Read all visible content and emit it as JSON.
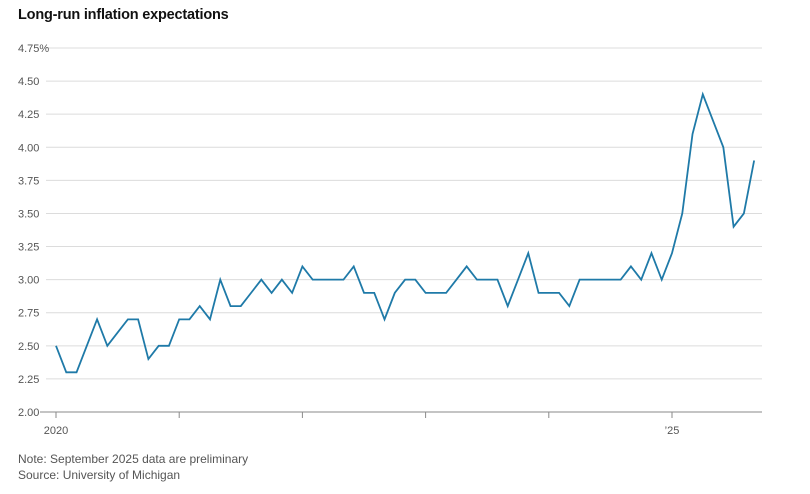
{
  "chart_data": {
    "type": "line",
    "title": "Long-run inflation expectations",
    "xlabel": "",
    "ylabel": "",
    "ylim": [
      2.0,
      4.75
    ],
    "y_ticks": [
      "4.75%",
      "4.50",
      "4.25",
      "4.00",
      "3.75",
      "3.50",
      "3.25",
      "3.00",
      "2.75",
      "2.50",
      "2.25",
      "2.00"
    ],
    "x_ticks": [
      {
        "year": 2020,
        "label": "2020"
      },
      {
        "year": 2021,
        "label": ""
      },
      {
        "year": 2022,
        "label": ""
      },
      {
        "year": 2023,
        "label": ""
      },
      {
        "year": 2024,
        "label": ""
      },
      {
        "year": 2025,
        "label": "’25"
      }
    ],
    "grid": true,
    "legend": "none",
    "color": "#1f7aa8",
    "series": [
      {
        "x": [
          "2020-01",
          "2020-02",
          "2020-03",
          "2020-04",
          "2020-05",
          "2020-06",
          "2020-07",
          "2020-08",
          "2020-09",
          "2020-10",
          "2020-11",
          "2020-12",
          "2021-01",
          "2021-02",
          "2021-03",
          "2021-04",
          "2021-05",
          "2021-06",
          "2021-07",
          "2021-08",
          "2021-09",
          "2021-10",
          "2021-11",
          "2021-12",
          "2022-01",
          "2022-02",
          "2022-03",
          "2022-04",
          "2022-05",
          "2022-06",
          "2022-07",
          "2022-08",
          "2022-09",
          "2022-10",
          "2022-11",
          "2022-12",
          "2023-01",
          "2023-02",
          "2023-03",
          "2023-04",
          "2023-05",
          "2023-06",
          "2023-07",
          "2023-08",
          "2023-09",
          "2023-10",
          "2023-11",
          "2023-12",
          "2024-01",
          "2024-02",
          "2024-03",
          "2024-04",
          "2024-05",
          "2024-06",
          "2024-07",
          "2024-08",
          "2024-09",
          "2024-10",
          "2024-11",
          "2024-12",
          "2025-01",
          "2025-02",
          "2025-03",
          "2025-04",
          "2025-05",
          "2025-06",
          "2025-07",
          "2025-08",
          "2025-09"
        ],
        "values": [
          2.5,
          2.3,
          2.3,
          2.5,
          2.7,
          2.5,
          2.6,
          2.7,
          2.7,
          2.4,
          2.5,
          2.5,
          2.7,
          2.7,
          2.8,
          2.7,
          3.0,
          2.8,
          2.8,
          2.9,
          3.0,
          2.9,
          3.0,
          2.9,
          3.1,
          3.0,
          3.0,
          3.0,
          3.0,
          3.1,
          2.9,
          2.9,
          2.7,
          2.9,
          3.0,
          3.0,
          2.9,
          2.9,
          2.9,
          3.0,
          3.1,
          3.0,
          3.0,
          3.0,
          2.8,
          3.0,
          3.2,
          2.9,
          2.9,
          2.9,
          2.8,
          3.0,
          3.0,
          3.0,
          3.0,
          3.0,
          3.1,
          3.0,
          3.2,
          3.0,
          3.2,
          3.5,
          4.1,
          4.4,
          4.2,
          4.0,
          3.4,
          3.5,
          3.9
        ]
      }
    ],
    "notes": [
      "Note: September 2025 data are preliminary",
      "Source: University of Michigan"
    ]
  }
}
